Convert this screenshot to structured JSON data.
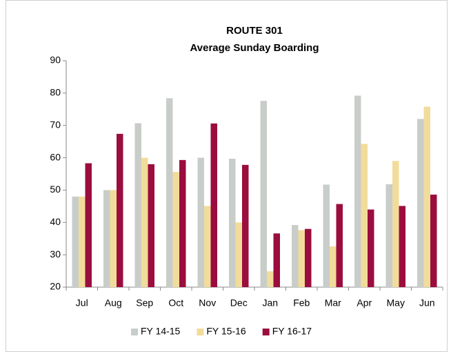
{
  "chart_data": {
    "type": "bar",
    "title": "ROUTE 301",
    "subtitle": "Average Sunday Boarding",
    "categories": [
      "Jul",
      "Aug",
      "Sep",
      "Oct",
      "Nov",
      "Dec",
      "Jan",
      "Feb",
      "Mar",
      "Apr",
      "May",
      "Jun"
    ],
    "series": [
      {
        "name": "FY 14-15",
        "color": "#c9cdc9",
        "values": [
          48,
          50,
          70.7,
          78.4,
          60,
          59.7,
          77.6,
          39.2,
          51.7,
          79.2,
          51.8,
          72
        ]
      },
      {
        "name": "FY 15-16",
        "color": "#f2dc9b",
        "values": [
          48,
          50,
          60,
          55.6,
          45.1,
          40,
          24.9,
          37.6,
          32.6,
          64.3,
          59,
          75.8
        ]
      },
      {
        "name": "FY 16-17",
        "color": "#9b0d3e",
        "values": [
          58.3,
          67.4,
          58,
          59.3,
          70.6,
          57.8,
          36.6,
          38,
          45.7,
          44,
          45.1,
          48.6
        ]
      }
    ],
    "ylim": [
      20,
      90
    ],
    "yticks": [
      20,
      30,
      40,
      50,
      60,
      70,
      80,
      90
    ],
    "grid": false,
    "legend": "bottom"
  }
}
